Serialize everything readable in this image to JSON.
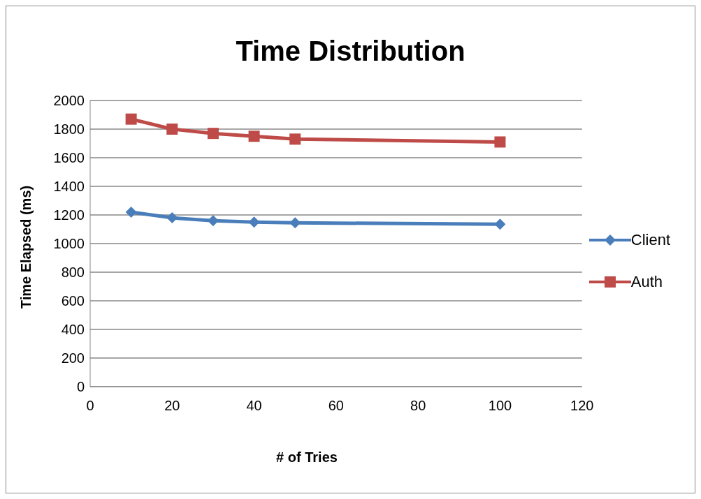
{
  "chart_data": {
    "type": "line",
    "title": "Time Distribution",
    "xlabel": "# of Tries",
    "ylabel": "Time Elapsed  (ms)",
    "x": [
      10,
      20,
      30,
      40,
      50,
      100
    ],
    "series": [
      {
        "name": "Client",
        "color": "#4a7ebb",
        "marker": "diamond",
        "values": [
          1220,
          1180,
          1160,
          1150,
          1145,
          1135
        ]
      },
      {
        "name": "Auth",
        "color": "#be4b48",
        "marker": "square",
        "values": [
          1870,
          1800,
          1770,
          1750,
          1730,
          1710
        ]
      }
    ],
    "xlim": [
      0,
      120
    ],
    "xticks": [
      0,
      20,
      40,
      60,
      80,
      100,
      120
    ],
    "ylim": [
      0,
      2000
    ],
    "yticks": [
      0,
      200,
      400,
      600,
      800,
      1000,
      1200,
      1400,
      1600,
      1800,
      2000
    ],
    "grid": "y",
    "legend": "right"
  }
}
